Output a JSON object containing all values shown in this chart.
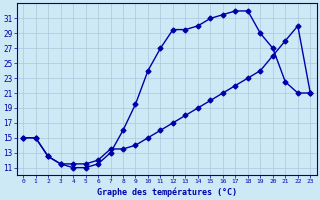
{
  "bg_color": "#cde9f6",
  "grid_color": "#aac8dc",
  "line_color": "#0000aa",
  "marker": "D",
  "markersize": 2.5,
  "linewidth": 1.0,
  "xlim": [
    -0.5,
    23.5
  ],
  "ylim": [
    10.0,
    33.0
  ],
  "xticks": [
    0,
    1,
    2,
    3,
    4,
    5,
    6,
    7,
    8,
    9,
    10,
    11,
    12,
    13,
    14,
    15,
    16,
    17,
    18,
    19,
    20,
    21,
    22,
    23
  ],
  "yticks": [
    11,
    13,
    15,
    17,
    19,
    21,
    23,
    25,
    27,
    29,
    31
  ],
  "xlabel": "Graphe des températures (°C)",
  "series": [
    {
      "x": [
        0,
        1,
        2,
        3,
        4,
        5,
        6,
        7,
        8,
        9,
        10,
        11,
        12,
        13,
        14,
        15,
        16,
        17,
        18,
        19,
        20,
        21,
        22,
        23
      ],
      "y": [
        15,
        15,
        12.5,
        11.5,
        11,
        11,
        11.5,
        13,
        16,
        19.5,
        24,
        27,
        29.5,
        29.5,
        30,
        31,
        31.5,
        32,
        32,
        29,
        27,
        22.5,
        21,
        21
      ]
    },
    {
      "x": [
        0,
        1,
        2,
        3,
        4,
        5,
        6,
        7,
        8,
        9,
        10,
        11,
        12,
        13,
        14,
        15,
        16,
        17,
        18,
        19,
        20,
        21,
        22,
        23
      ],
      "y": [
        15,
        15,
        12.5,
        11.5,
        11.5,
        11.5,
        12,
        13.5,
        13.5,
        14,
        15,
        16,
        17,
        18,
        19,
        20,
        21,
        22,
        23,
        24,
        26,
        28,
        30,
        21
      ]
    }
  ]
}
